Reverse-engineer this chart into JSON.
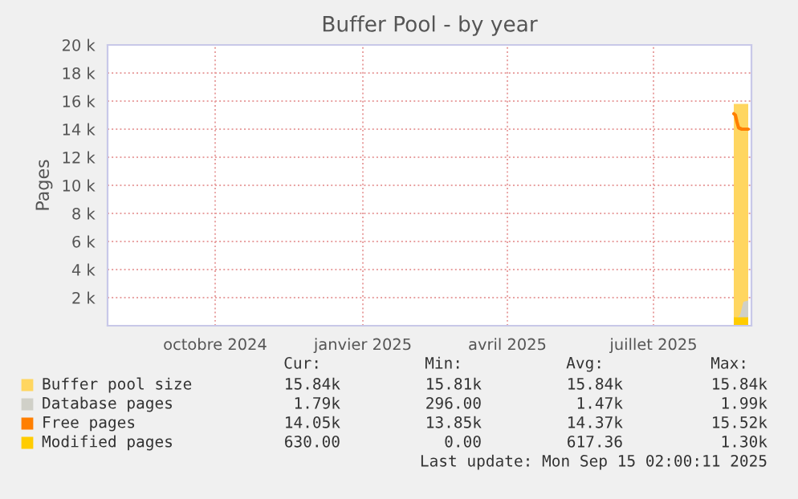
{
  "chart_data": {
    "type": "area",
    "title": "Buffer Pool - by year",
    "ylabel": "Pages",
    "xlim": [
      "2024-08-10",
      "2025-09-15"
    ],
    "xticks": [
      {
        "value": "2024-10-16",
        "label": "octobre 2024"
      },
      {
        "value": "2025-01-16",
        "label": "janvier 2025"
      },
      {
        "value": "2025-04-16",
        "label": "avril 2025"
      },
      {
        "value": "2025-07-16",
        "label": "juillet 2025"
      }
    ],
    "ylim": [
      0,
      20000
    ],
    "yticks": [
      {
        "value": 2000,
        "label": "2 k"
      },
      {
        "value": 4000,
        "label": "4 k"
      },
      {
        "value": 6000,
        "label": "6 k"
      },
      {
        "value": 8000,
        "label": "8 k"
      },
      {
        "value": 10000,
        "label": "10 k"
      },
      {
        "value": 12000,
        "label": "12 k"
      },
      {
        "value": 14000,
        "label": "14 k"
      },
      {
        "value": 16000,
        "label": "16 k"
      },
      {
        "value": 18000,
        "label": "18 k"
      },
      {
        "value": 20000,
        "label": "20 k"
      }
    ],
    "grid": true,
    "legend": "bottom",
    "series": [
      {
        "name": "Buffer pool size",
        "color": "#ffd660",
        "x": [
          "2025-09-04",
          "2025-09-13"
        ],
        "values": [
          15800,
          15800
        ]
      },
      {
        "name": "Database pages",
        "color": "#d0d0c8",
        "x": [
          "2025-09-04",
          "2025-09-08",
          "2025-09-10",
          "2025-09-13"
        ],
        "values": [
          300,
          800,
          1700,
          1800
        ]
      },
      {
        "name": "Free pages",
        "type": "line",
        "color": "#ff7f00",
        "x": [
          "2025-09-04",
          "2025-09-05",
          "2025-09-06",
          "2025-09-07",
          "2025-09-09",
          "2025-09-13"
        ],
        "values": [
          15100,
          15000,
          14500,
          14100,
          14000,
          14000
        ]
      },
      {
        "name": "Modified pages",
        "color": "#ffcc00",
        "x": [
          "2025-09-04",
          "2025-09-13"
        ],
        "values": [
          600,
          600
        ]
      }
    ],
    "annotations": [
      "Cur:",
      "Min:",
      "Avg:",
      "Max:",
      "15.84k",
      "15.81k",
      "15.84k",
      "15.84k",
      "1.79k",
      "296.00",
      "1.47k",
      "1.99k",
      "14.05k",
      "13.85k",
      "14.37k",
      "15.52k",
      "630.00",
      "0.00",
      "617.36",
      "1.30k",
      "Last update: Mon Sep 15 02:00:11 2025"
    ]
  }
}
